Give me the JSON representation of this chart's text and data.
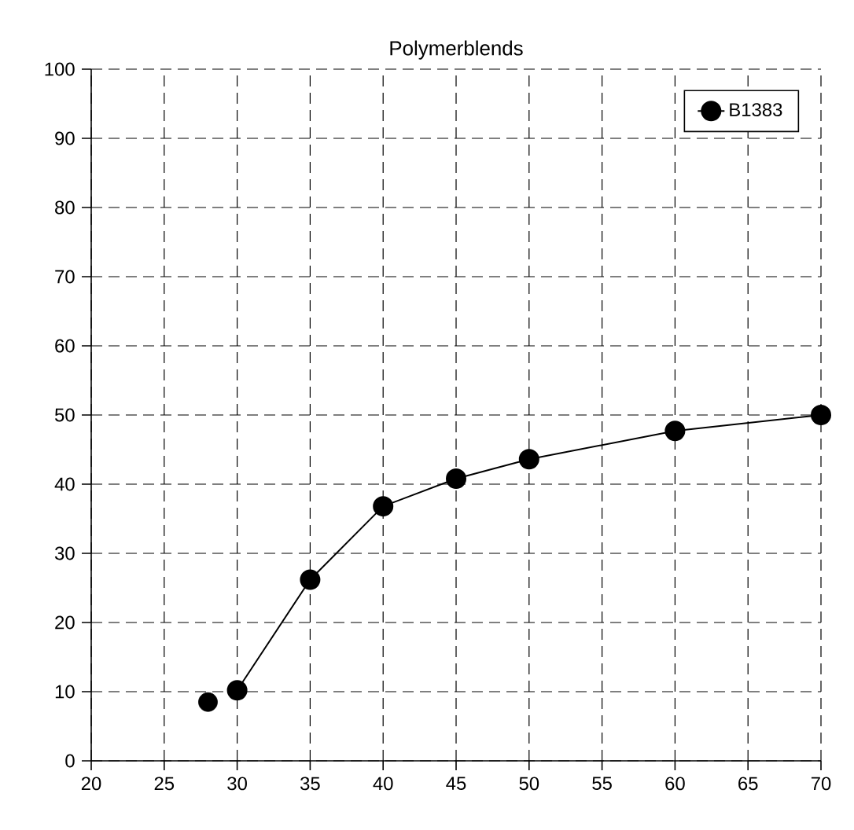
{
  "chart_data": {
    "type": "line",
    "title": "Polymerblends",
    "xlim": [
      20,
      70
    ],
    "xticks": [
      20,
      25,
      30,
      35,
      40,
      45,
      50,
      55,
      60,
      65,
      70
    ],
    "ylim": [
      0,
      100
    ],
    "yticks": [
      0,
      10,
      20,
      30,
      40,
      50,
      60,
      70,
      80,
      90,
      100
    ],
    "grid": true,
    "legend": "top right",
    "marker": "circle",
    "line_style": "solid",
    "series": [
      {
        "name": "B1383",
        "color": "#000000",
        "x": [
          30,
          35,
          40,
          45,
          50,
          60,
          70
        ],
        "values": [
          10.2,
          26.2,
          36.8,
          40.8,
          43.6,
          47.7,
          50
        ]
      },
      {
        "type": "scatter",
        "color": "#000000",
        "x": [
          28
        ],
        "values": [
          8.5
        ]
      }
    ]
  }
}
